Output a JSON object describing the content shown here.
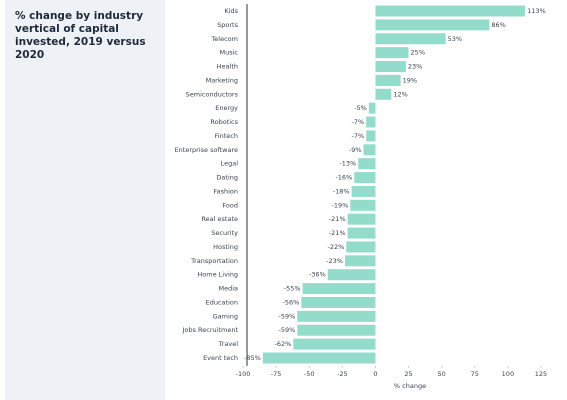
{
  "chart_data": {
    "type": "barh",
    "title": "% change by industry vertical of capital invested, 2019 versus 2020",
    "x_label": "% change",
    "categories": [
      "Kids",
      "Sports",
      "Telecom",
      "Music",
      "Health",
      "Marketing",
      "Semiconductors",
      "Energy",
      "Robotics",
      "Fintech",
      "Enterprise software",
      "Legal",
      "Dating",
      "Fashion",
      "Food",
      "Real estate",
      "Security",
      "Hosting",
      "Transportation",
      "Home Living",
      "Media",
      "Education",
      "Gaming",
      "Jobs Recruitment",
      "Travel",
      "Event tech"
    ],
    "values": [
      113,
      86,
      53,
      25,
      23,
      19,
      12,
      -5,
      -7,
      -7,
      -9,
      -13,
      -16,
      -18,
      -19,
      -21,
      -21,
      -22,
      -23,
      -36,
      -55,
      -56,
      -59,
      -59,
      -62,
      -85
    ],
    "value_labels": [
      "113%",
      "86%",
      "53%",
      "25%",
      "23%",
      "19%",
      "12%",
      "-5%",
      "-7%",
      "-7%",
      "-9%",
      "-13%",
      "-16%",
      "-18%",
      "-19%",
      "-21%",
      "-21%",
      "-22%",
      "-23%",
      "-36%",
      "-55%",
      "-56%",
      "-59%",
      "-59%",
      "-62%",
      "-85%"
    ],
    "color": "#93dccb",
    "xlim": [
      -100,
      125
    ],
    "xticks": [
      -100,
      -75,
      -50,
      -25,
      0,
      25,
      50,
      75,
      100,
      125
    ]
  }
}
